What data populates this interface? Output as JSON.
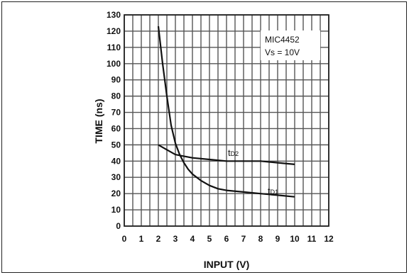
{
  "chart_data": {
    "type": "line",
    "title": "",
    "xlabel": "INPUT (V)",
    "ylabel": "TIME (ns)",
    "xlim": [
      0,
      12
    ],
    "ylim": [
      0,
      130
    ],
    "x_ticks": [
      0,
      1,
      2,
      3,
      4,
      5,
      6,
      7,
      8,
      9,
      10,
      11,
      12
    ],
    "y_ticks": [
      0,
      10,
      20,
      30,
      40,
      50,
      60,
      70,
      80,
      90,
      100,
      110,
      120,
      130
    ],
    "grid": true,
    "annotation": {
      "line1": "MIC4452",
      "line2": "Vs = 10V"
    },
    "series": [
      {
        "name": "tD1",
        "label_main": "t",
        "label_sub": "D1",
        "x": [
          2,
          2.25,
          2.5,
          2.75,
          3,
          3.25,
          3.5,
          3.75,
          4,
          4.5,
          5,
          5.5,
          6,
          7,
          8,
          9,
          10
        ],
        "y": [
          123,
          100,
          80,
          62,
          51,
          44,
          39,
          35,
          32,
          28,
          25,
          23,
          22,
          21,
          20,
          19,
          18
        ]
      },
      {
        "name": "tD2",
        "label_main": "t",
        "label_sub": "D2",
        "x": [
          2,
          2.5,
          3,
          3.5,
          4,
          5,
          6,
          7,
          8,
          9,
          10
        ],
        "y": [
          50,
          47,
          44,
          43,
          42,
          41,
          40,
          40,
          40,
          39,
          38
        ]
      }
    ]
  }
}
